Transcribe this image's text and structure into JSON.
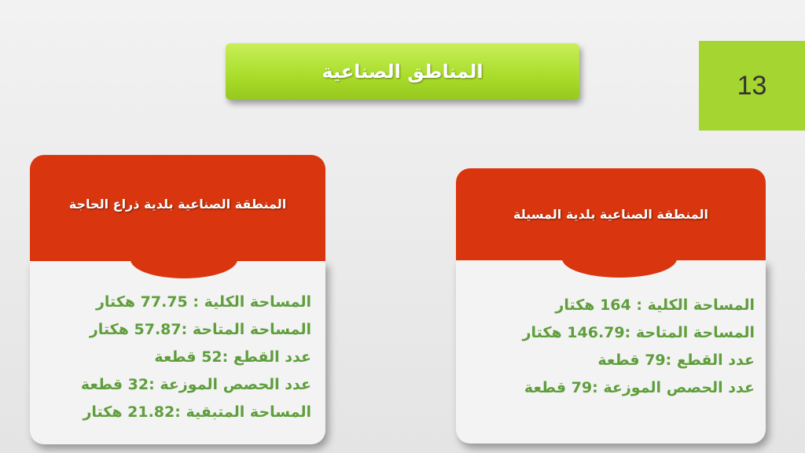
{
  "title": "المناطق الصناعية",
  "slide_number": "13",
  "colors": {
    "accent_green": "#a5d530",
    "header_red": "#d9360f",
    "text_green": "#5f9e3c"
  },
  "cards": [
    {
      "heading": "المنطقة الصناعية بلدية ذراع الحاجة",
      "lines": [
        "المساحة الكلية : 77.75 هكتار",
        "المساحة المتاحة :57.87 هكتار",
        "عدد القطع :52 قطعة",
        "عدد الحصص الموزعة :32 قطعة",
        "المساحة المتبقية :21.82 هكتار"
      ]
    },
    {
      "heading": "المنطقة الصناعية بلدية المسيلة",
      "lines": [
        "المساحة الكلية : 164 هكتار",
        "المساحة المتاحة :146.79 هكتار",
        "عدد القطع :79 قطعة",
        "عدد الحصص الموزعة :79 قطعة"
      ]
    }
  ]
}
